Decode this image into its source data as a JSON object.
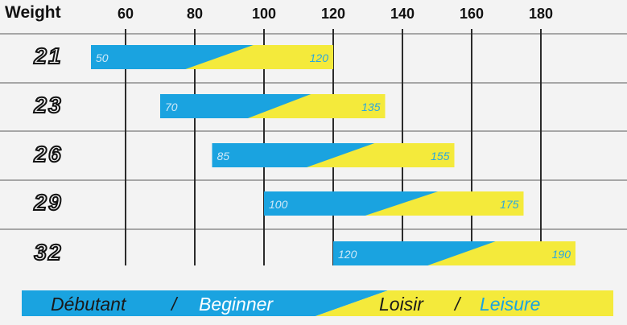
{
  "chart_data": {
    "type": "bar",
    "xlabel": "Weight",
    "x_ticks": [
      60,
      80,
      100,
      120,
      140,
      160,
      180
    ],
    "xlim": [
      50,
      195
    ],
    "grid": true,
    "categories": [
      "21",
      "23",
      "26",
      "29",
      "32"
    ],
    "ranges": [
      {
        "category": "21",
        "min": 50,
        "max": 120
      },
      {
        "category": "23",
        "min": 70,
        "max": 135
      },
      {
        "category": "26",
        "min": 85,
        "max": 155
      },
      {
        "category": "29",
        "min": 100,
        "max": 175
      },
      {
        "category": "32",
        "min": 120,
        "max": 190
      }
    ],
    "colors": {
      "beginner": "#1aa3e0",
      "leisure": "#f4ea3b",
      "grid": "#2b2b2b",
      "background": "#f3f3f3"
    }
  },
  "legend": {
    "debutant": "Débutant",
    "sep1": "/",
    "beginner": "Beginner",
    "loisir": "Loisir",
    "sep2": "/",
    "leisure": "Leisure"
  }
}
